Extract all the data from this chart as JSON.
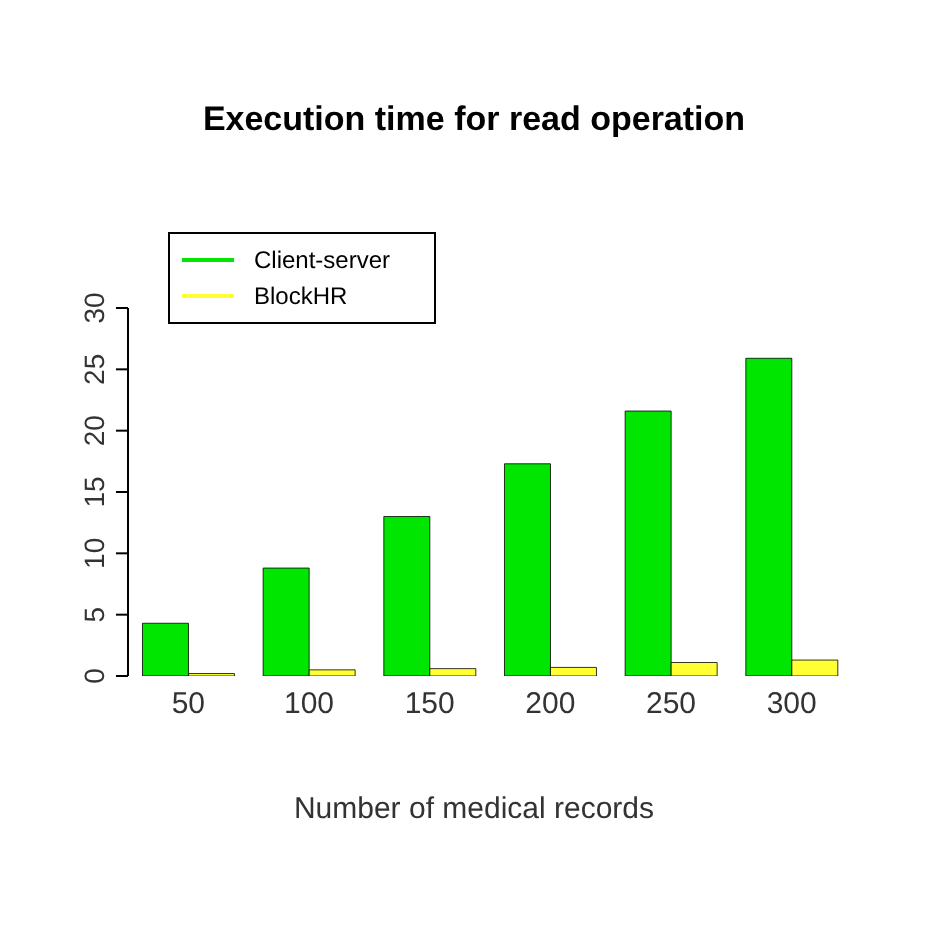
{
  "chart_data": {
    "type": "bar",
    "title": "Execution time for read operation",
    "xlabel": "Number of medical records",
    "categories": [
      "50",
      "100",
      "150",
      "200",
      "250",
      "300"
    ],
    "series": [
      {
        "name": "Client-server",
        "color": "#00e600",
        "values": [
          4.3,
          8.8,
          13,
          17.3,
          21.6,
          25.9
        ]
      },
      {
        "name": "BlockHR",
        "color": "#ffff33",
        "values": [
          0.2,
          0.5,
          0.6,
          0.7,
          1.1,
          1.3
        ]
      }
    ],
    "ylim": [
      0,
      30
    ],
    "yticks": [
      0,
      5,
      10,
      15,
      20,
      25,
      30
    ],
    "grid": false,
    "legend": "top left"
  }
}
